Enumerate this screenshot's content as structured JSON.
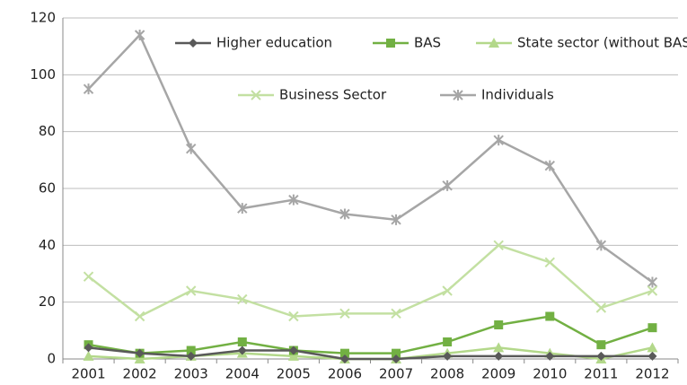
{
  "chart_data": {
    "type": "line",
    "categories": [
      "2001",
      "2002",
      "2003",
      "2004",
      "2005",
      "2006",
      "2007",
      "2008",
      "2009",
      "2010",
      "2011",
      "2012"
    ],
    "series": [
      {
        "name": "Higher education",
        "color": "#595959",
        "marker": "diamond",
        "values": [
          4,
          2,
          1,
          3,
          3,
          0,
          0,
          1,
          1,
          1,
          1,
          1
        ]
      },
      {
        "name": "BAS",
        "color": "#72b043",
        "marker": "square",
        "values": [
          5,
          2,
          3,
          6,
          3,
          2,
          2,
          6,
          12,
          15,
          5,
          11
        ]
      },
      {
        "name": "State sector (without BAS)",
        "color": "#b3d88a",
        "marker": "triangle",
        "values": [
          1,
          0,
          1,
          2,
          1,
          0,
          0,
          2,
          4,
          2,
          0,
          4
        ]
      },
      {
        "name": "Business Sector",
        "color": "#c3e0a2",
        "marker": "x",
        "values": [
          29,
          15,
          24,
          21,
          15,
          16,
          16,
          24,
          40,
          34,
          18,
          24
        ]
      },
      {
        "name": "Individuals",
        "color": "#a6a6a6",
        "marker": "star",
        "values": [
          95,
          114,
          74,
          53,
          56,
          51,
          49,
          61,
          77,
          68,
          40,
          27
        ]
      }
    ],
    "ylim": [
      0,
      120
    ],
    "yticks": [
      0,
      20,
      40,
      60,
      80,
      100,
      120
    ],
    "grid": true,
    "legend": "top"
  }
}
